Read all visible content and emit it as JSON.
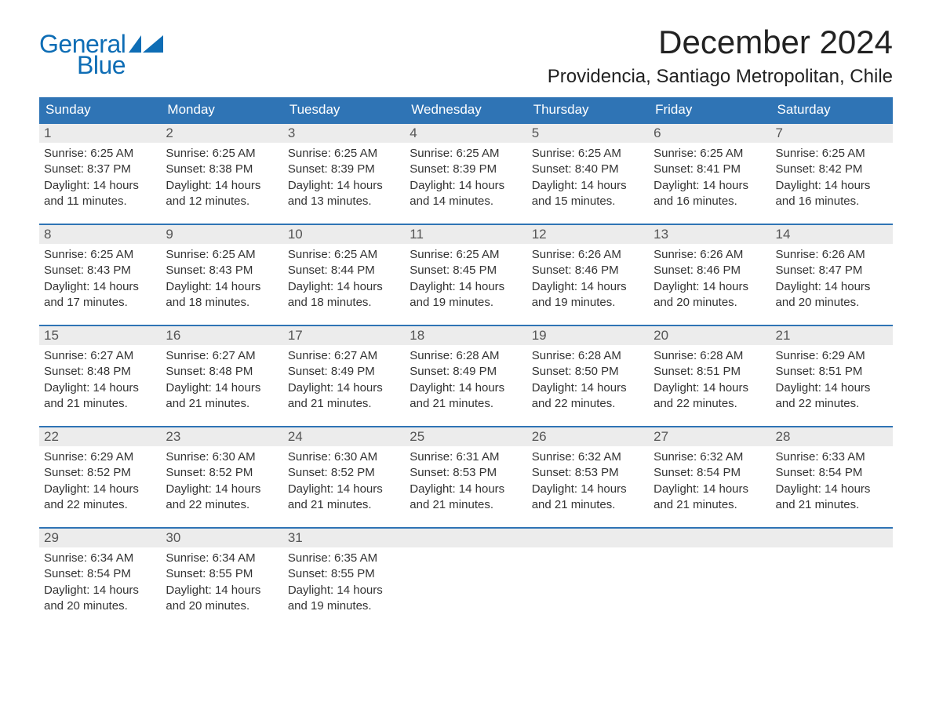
{
  "logo": {
    "text1": "General",
    "text2": "Blue",
    "brand_color": "#0e6db5"
  },
  "title": "December 2024",
  "location": "Providencia, Santiago Metropolitan, Chile",
  "colors": {
    "header_bg": "#2f74b5",
    "header_text": "#ffffff",
    "daynum_bg": "#ececec",
    "row_border": "#2f74b5",
    "body_text": "#333333"
  },
  "day_names": [
    "Sunday",
    "Monday",
    "Tuesday",
    "Wednesday",
    "Thursday",
    "Friday",
    "Saturday"
  ],
  "weeks": [
    [
      {
        "n": "1",
        "sunrise": "Sunrise: 6:25 AM",
        "sunset": "Sunset: 8:37 PM",
        "d1": "Daylight: 14 hours",
        "d2": "and 11 minutes."
      },
      {
        "n": "2",
        "sunrise": "Sunrise: 6:25 AM",
        "sunset": "Sunset: 8:38 PM",
        "d1": "Daylight: 14 hours",
        "d2": "and 12 minutes."
      },
      {
        "n": "3",
        "sunrise": "Sunrise: 6:25 AM",
        "sunset": "Sunset: 8:39 PM",
        "d1": "Daylight: 14 hours",
        "d2": "and 13 minutes."
      },
      {
        "n": "4",
        "sunrise": "Sunrise: 6:25 AM",
        "sunset": "Sunset: 8:39 PM",
        "d1": "Daylight: 14 hours",
        "d2": "and 14 minutes."
      },
      {
        "n": "5",
        "sunrise": "Sunrise: 6:25 AM",
        "sunset": "Sunset: 8:40 PM",
        "d1": "Daylight: 14 hours",
        "d2": "and 15 minutes."
      },
      {
        "n": "6",
        "sunrise": "Sunrise: 6:25 AM",
        "sunset": "Sunset: 8:41 PM",
        "d1": "Daylight: 14 hours",
        "d2": "and 16 minutes."
      },
      {
        "n": "7",
        "sunrise": "Sunrise: 6:25 AM",
        "sunset": "Sunset: 8:42 PM",
        "d1": "Daylight: 14 hours",
        "d2": "and 16 minutes."
      }
    ],
    [
      {
        "n": "8",
        "sunrise": "Sunrise: 6:25 AM",
        "sunset": "Sunset: 8:43 PM",
        "d1": "Daylight: 14 hours",
        "d2": "and 17 minutes."
      },
      {
        "n": "9",
        "sunrise": "Sunrise: 6:25 AM",
        "sunset": "Sunset: 8:43 PM",
        "d1": "Daylight: 14 hours",
        "d2": "and 18 minutes."
      },
      {
        "n": "10",
        "sunrise": "Sunrise: 6:25 AM",
        "sunset": "Sunset: 8:44 PM",
        "d1": "Daylight: 14 hours",
        "d2": "and 18 minutes."
      },
      {
        "n": "11",
        "sunrise": "Sunrise: 6:25 AM",
        "sunset": "Sunset: 8:45 PM",
        "d1": "Daylight: 14 hours",
        "d2": "and 19 minutes."
      },
      {
        "n": "12",
        "sunrise": "Sunrise: 6:26 AM",
        "sunset": "Sunset: 8:46 PM",
        "d1": "Daylight: 14 hours",
        "d2": "and 19 minutes."
      },
      {
        "n": "13",
        "sunrise": "Sunrise: 6:26 AM",
        "sunset": "Sunset: 8:46 PM",
        "d1": "Daylight: 14 hours",
        "d2": "and 20 minutes."
      },
      {
        "n": "14",
        "sunrise": "Sunrise: 6:26 AM",
        "sunset": "Sunset: 8:47 PM",
        "d1": "Daylight: 14 hours",
        "d2": "and 20 minutes."
      }
    ],
    [
      {
        "n": "15",
        "sunrise": "Sunrise: 6:27 AM",
        "sunset": "Sunset: 8:48 PM",
        "d1": "Daylight: 14 hours",
        "d2": "and 21 minutes."
      },
      {
        "n": "16",
        "sunrise": "Sunrise: 6:27 AM",
        "sunset": "Sunset: 8:48 PM",
        "d1": "Daylight: 14 hours",
        "d2": "and 21 minutes."
      },
      {
        "n": "17",
        "sunrise": "Sunrise: 6:27 AM",
        "sunset": "Sunset: 8:49 PM",
        "d1": "Daylight: 14 hours",
        "d2": "and 21 minutes."
      },
      {
        "n": "18",
        "sunrise": "Sunrise: 6:28 AM",
        "sunset": "Sunset: 8:49 PM",
        "d1": "Daylight: 14 hours",
        "d2": "and 21 minutes."
      },
      {
        "n": "19",
        "sunrise": "Sunrise: 6:28 AM",
        "sunset": "Sunset: 8:50 PM",
        "d1": "Daylight: 14 hours",
        "d2": "and 22 minutes."
      },
      {
        "n": "20",
        "sunrise": "Sunrise: 6:28 AM",
        "sunset": "Sunset: 8:51 PM",
        "d1": "Daylight: 14 hours",
        "d2": "and 22 minutes."
      },
      {
        "n": "21",
        "sunrise": "Sunrise: 6:29 AM",
        "sunset": "Sunset: 8:51 PM",
        "d1": "Daylight: 14 hours",
        "d2": "and 22 minutes."
      }
    ],
    [
      {
        "n": "22",
        "sunrise": "Sunrise: 6:29 AM",
        "sunset": "Sunset: 8:52 PM",
        "d1": "Daylight: 14 hours",
        "d2": "and 22 minutes."
      },
      {
        "n": "23",
        "sunrise": "Sunrise: 6:30 AM",
        "sunset": "Sunset: 8:52 PM",
        "d1": "Daylight: 14 hours",
        "d2": "and 22 minutes."
      },
      {
        "n": "24",
        "sunrise": "Sunrise: 6:30 AM",
        "sunset": "Sunset: 8:52 PM",
        "d1": "Daylight: 14 hours",
        "d2": "and 21 minutes."
      },
      {
        "n": "25",
        "sunrise": "Sunrise: 6:31 AM",
        "sunset": "Sunset: 8:53 PM",
        "d1": "Daylight: 14 hours",
        "d2": "and 21 minutes."
      },
      {
        "n": "26",
        "sunrise": "Sunrise: 6:32 AM",
        "sunset": "Sunset: 8:53 PM",
        "d1": "Daylight: 14 hours",
        "d2": "and 21 minutes."
      },
      {
        "n": "27",
        "sunrise": "Sunrise: 6:32 AM",
        "sunset": "Sunset: 8:54 PM",
        "d1": "Daylight: 14 hours",
        "d2": "and 21 minutes."
      },
      {
        "n": "28",
        "sunrise": "Sunrise: 6:33 AM",
        "sunset": "Sunset: 8:54 PM",
        "d1": "Daylight: 14 hours",
        "d2": "and 21 minutes."
      }
    ],
    [
      {
        "n": "29",
        "sunrise": "Sunrise: 6:34 AM",
        "sunset": "Sunset: 8:54 PM",
        "d1": "Daylight: 14 hours",
        "d2": "and 20 minutes."
      },
      {
        "n": "30",
        "sunrise": "Sunrise: 6:34 AM",
        "sunset": "Sunset: 8:55 PM",
        "d1": "Daylight: 14 hours",
        "d2": "and 20 minutes."
      },
      {
        "n": "31",
        "sunrise": "Sunrise: 6:35 AM",
        "sunset": "Sunset: 8:55 PM",
        "d1": "Daylight: 14 hours",
        "d2": "and 19 minutes."
      },
      {
        "empty": true
      },
      {
        "empty": true
      },
      {
        "empty": true
      },
      {
        "empty": true
      }
    ]
  ]
}
